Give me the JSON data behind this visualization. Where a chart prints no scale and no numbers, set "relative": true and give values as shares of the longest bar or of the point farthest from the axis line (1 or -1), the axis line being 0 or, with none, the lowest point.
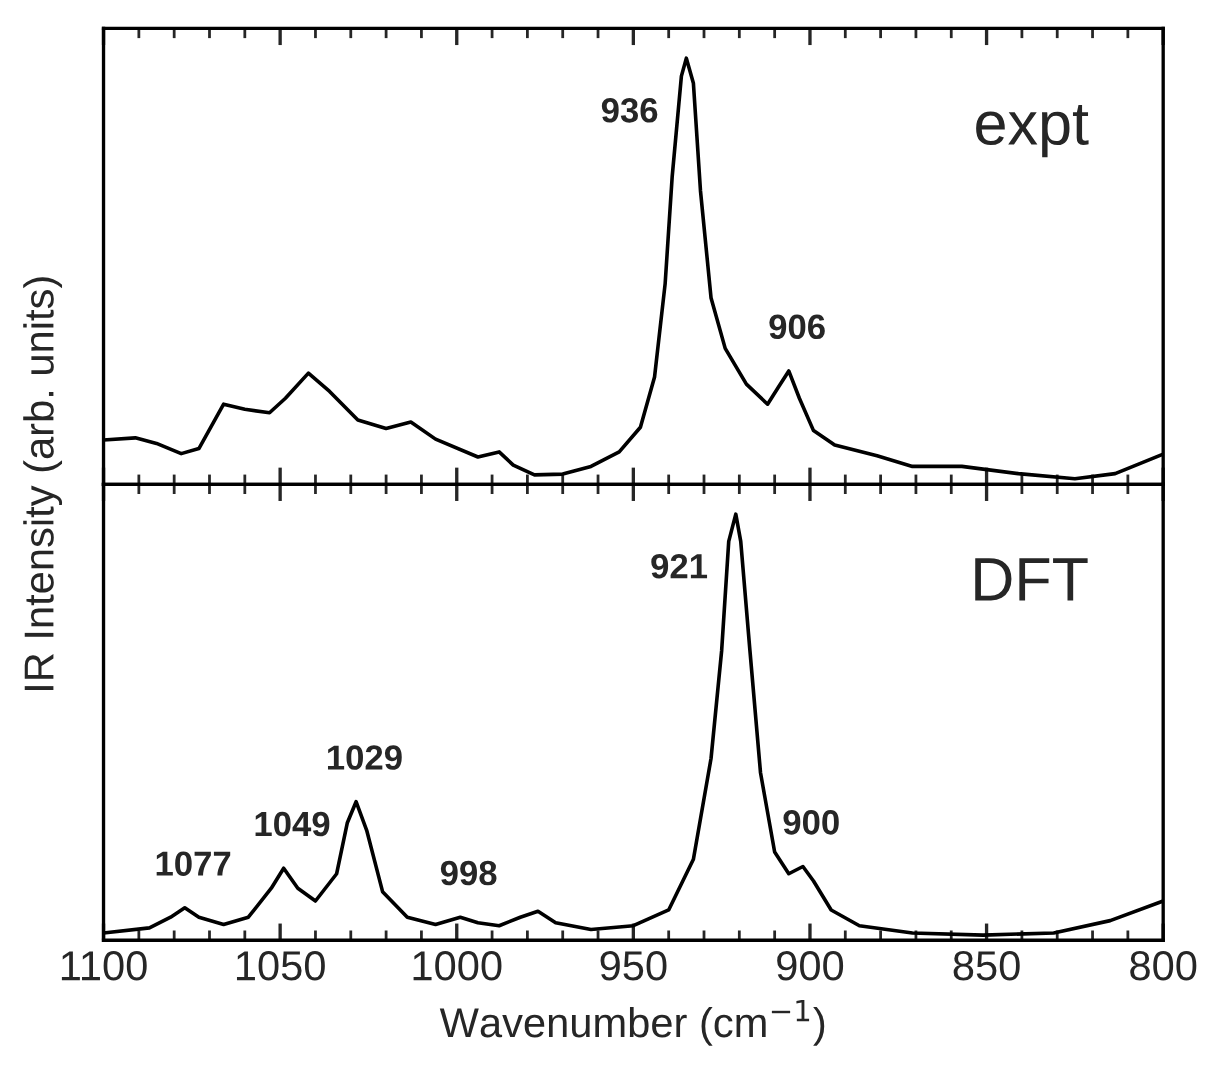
{
  "chart_data": [
    {
      "type": "line",
      "relative": true,
      "ylabel": "IR Intensity (arb. units)",
      "xlim": [
        1100,
        800
      ],
      "xticks": [
        1100,
        1050,
        1000,
        950,
        900,
        850,
        800
      ],
      "tick_labels": false,
      "grid": false,
      "legend": false,
      "series": [
        {
          "color": "#000000",
          "x": [
            1100,
            1091,
            1085,
            1078,
            1073,
            1066,
            1060,
            1053,
            1048.5,
            1042,
            1036,
            1028,
            1020,
            1013,
            1006,
            994,
            988,
            984,
            978,
            970,
            962,
            954,
            948,
            944,
            941,
            939,
            936.4,
            935,
            933,
            931,
            928,
            924,
            918,
            912,
            909,
            906,
            903,
            899,
            893,
            881,
            871,
            857,
            841,
            825,
            813.6,
            800
          ],
          "values": [
            0.104,
            0.109,
            0.096,
            0.072,
            0.084,
            0.188,
            0.176,
            0.168,
            0.202,
            0.261,
            0.218,
            0.151,
            0.131,
            0.146,
            0.106,
            0.064,
            0.076,
            0.045,
            0.022,
            0.024,
            0.042,
            0.076,
            0.134,
            0.252,
            0.471,
            0.723,
            0.958,
            1,
            0.941,
            0.689,
            0.437,
            0.319,
            0.235,
            0.188,
            0.227,
            0.266,
            0.202,
            0.126,
            0.092,
            0.067,
            0.042,
            0.042,
            0.025,
            0.013,
            0.025,
            0.071
          ]
        }
      ],
      "annotations": [
        "expt",
        {
          "text": "936",
          "x": 935,
          "y": 1
        },
        {
          "text": "906",
          "x": 906,
          "y": 0.266
        }
      ]
    },
    {
      "type": "line",
      "relative": true,
      "xlabel": "Wavenumber (cm$^{−1}$)",
      "xlim": [
        1100,
        800
      ],
      "xticks": [
        1100,
        1050,
        1000,
        950,
        900,
        850,
        800
      ],
      "tick_labels": "x",
      "grid": false,
      "legend": false,
      "series": [
        {
          "color": "#000000",
          "x": [
            1100,
            1087,
            1081,
            1077,
            1073,
            1066,
            1059,
            1052.5,
            1049,
            1045,
            1040,
            1034,
            1031,
            1028.5,
            1025.5,
            1021,
            1014,
            1006,
            999,
            994,
            988,
            982,
            977,
            972,
            962,
            950,
            940,
            933,
            928,
            925,
            923,
            921,
            919.6,
            917,
            914,
            910,
            906,
            902,
            899,
            894,
            886,
            871,
            851,
            831,
            815,
            800
          ],
          "values": [
            0.017,
            0.029,
            0.054,
            0.076,
            0.054,
            0.037,
            0.054,
            0.122,
            0.169,
            0.122,
            0.092,
            0.156,
            0.275,
            0.325,
            0.258,
            0.114,
            0.054,
            0.037,
            0.054,
            0.041,
            0.034,
            0.054,
            0.068,
            0.041,
            0.025,
            0.034,
            0.071,
            0.19,
            0.427,
            0.68,
            0.936,
            1,
            0.936,
            0.68,
            0.393,
            0.207,
            0.156,
            0.173,
            0.139,
            0.071,
            0.034,
            0.017,
            0.012,
            0.017,
            0.046,
            0.092
          ]
        }
      ],
      "annotations": [
        "DFT",
        {
          "text": "1077",
          "x": 1077,
          "y": 0.076
        },
        {
          "text": "1049",
          "x": 1049,
          "y": 0.169
        },
        {
          "text": "1029",
          "x": 1028.5,
          "y": 0.325
        },
        {
          "text": "998",
          "x": 999,
          "y": 0.054
        },
        {
          "text": "921",
          "x": 921,
          "y": 1
        },
        {
          "text": "900",
          "x": 902,
          "y": 0.173
        }
      ]
    }
  ]
}
